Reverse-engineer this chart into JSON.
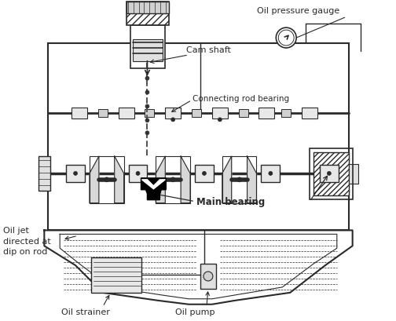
{
  "bg_color": "#ffffff",
  "line_color": "#2a2a2a",
  "labels": {
    "oil_pressure_gauge": "Oil pressure gauge",
    "cam_shaft": "Cam shaft",
    "connecting_rod_bearing": "Connecting rod bearing",
    "main_bearing": "Main bearing",
    "oil_jet": "Oil jet\ndirected at\ndip on rod",
    "oil_strainer": "Oil strainer",
    "oil_pump": "Oil pump"
  },
  "figsize": [
    5.04,
    4.1
  ],
  "dpi": 100
}
